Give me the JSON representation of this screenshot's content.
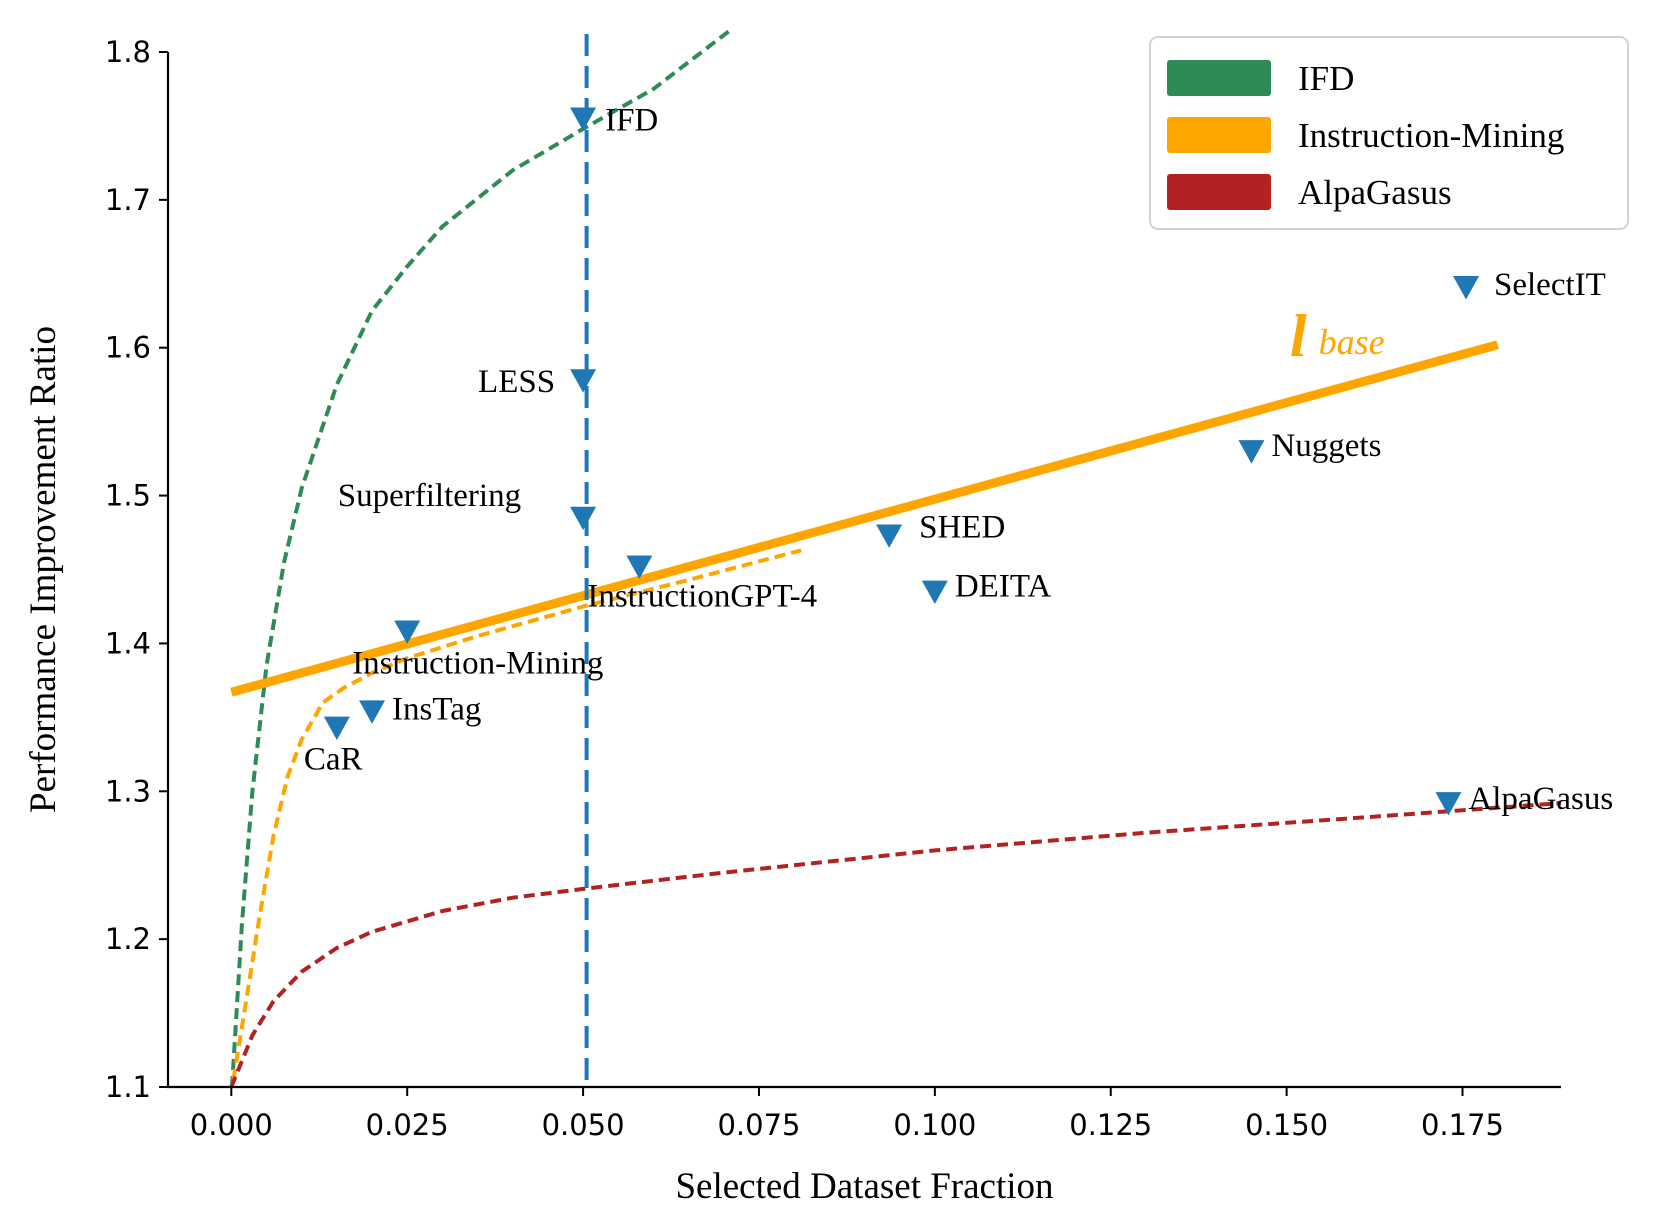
{
  "chart_data": {
    "type": "scatter",
    "xlabel": "Selected Dataset Fraction",
    "ylabel": "Performance Improvement Ratio",
    "xlim": [
      -0.009,
      0.189
    ],
    "ylim": [
      1.1,
      1.8
    ],
    "xticks": [
      "0.000",
      "0.025",
      "0.050",
      "0.075",
      "0.100",
      "0.125",
      "0.150",
      "0.175"
    ],
    "xtick_values": [
      0,
      0.025,
      0.05,
      0.075,
      0.1,
      0.125,
      0.15,
      0.175
    ],
    "yticks": [
      "1.1",
      "1.2",
      "1.3",
      "1.4",
      "1.5",
      "1.6",
      "1.7",
      "1.8"
    ],
    "ytick_values": [
      1.1,
      1.2,
      1.3,
      1.4,
      1.5,
      1.6,
      1.7,
      1.8
    ],
    "points": [
      {
        "label": "IFD",
        "x": 0.05,
        "y": 1.755
      },
      {
        "label": "LESS",
        "x": 0.05,
        "y": 1.578
      },
      {
        "label": "Superfiltering",
        "x": 0.05,
        "y": 1.485
      },
      {
        "label": "InstructionGPT-4",
        "x": 0.058,
        "y": 1.452
      },
      {
        "label": "Instruction-Mining",
        "x": 0.025,
        "y": 1.408
      },
      {
        "label": "InsTag",
        "x": 0.02,
        "y": 1.354
      },
      {
        "label": "CaR",
        "x": 0.015,
        "y": 1.343
      },
      {
        "label": "SHED",
        "x": 0.0935,
        "y": 1.473
      },
      {
        "label": "DEITA",
        "x": 0.1,
        "y": 1.435
      },
      {
        "label": "Nuggets",
        "x": 0.145,
        "y": 1.53
      },
      {
        "label": "SelectIT",
        "x": 0.1755,
        "y": 1.641
      },
      {
        "label": "AlpaGasus",
        "x": 0.173,
        "y": 1.292
      }
    ],
    "vertical_line": {
      "x": 0.0505,
      "color": "#1f77b4",
      "style": "dashed"
    },
    "baseline": {
      "name_main": "l",
      "name_sub": "base",
      "color": "#ffa500",
      "x": [
        0,
        0.18
      ],
      "y": [
        1.367,
        1.602
      ]
    },
    "fitted_curves": [
      {
        "name": "IFD",
        "color": "#2e8b57",
        "x": [
          0.0001,
          0.0015,
          0.003,
          0.005,
          0.0075,
          0.01,
          0.015,
          0.02,
          0.025,
          0.03,
          0.04,
          0.05,
          0.06,
          0.071
        ],
        "y": [
          1.1,
          1.21,
          1.3,
          1.385,
          1.455,
          1.505,
          1.575,
          1.625,
          1.655,
          1.682,
          1.72,
          1.748,
          1.775,
          1.815
        ]
      },
      {
        "name": "Instruction-Mining",
        "color": "#ffa500",
        "x": [
          0.0003,
          0.002,
          0.004,
          0.006,
          0.008,
          0.01,
          0.013,
          0.016,
          0.02,
          0.025,
          0.035,
          0.05,
          0.065,
          0.081
        ],
        "y": [
          1.105,
          1.155,
          1.215,
          1.27,
          1.31,
          1.335,
          1.36,
          1.37,
          1.38,
          1.39,
          1.405,
          1.425,
          1.443,
          1.463
        ]
      },
      {
        "name": "AlpaGasus",
        "color": "#b22222",
        "x": [
          0,
          0.003,
          0.006,
          0.01,
          0.015,
          0.02,
          0.03,
          0.04,
          0.05,
          0.07,
          0.1,
          0.13,
          0.16,
          0.189
        ],
        "y": [
          1.1,
          1.135,
          1.158,
          1.178,
          1.194,
          1.205,
          1.219,
          1.228,
          1.234,
          1.245,
          1.26,
          1.272,
          1.282,
          1.292
        ]
      }
    ],
    "legend": {
      "position": "top-right",
      "entries": [
        {
          "label": "IFD",
          "color": "#2e8b57"
        },
        {
          "label": "Instruction-Mining",
          "color": "#ffa500"
        },
        {
          "label": "AlpaGasus",
          "color": "#b22222"
        }
      ]
    },
    "marker_color": "#1f77b4",
    "grid": false
  }
}
